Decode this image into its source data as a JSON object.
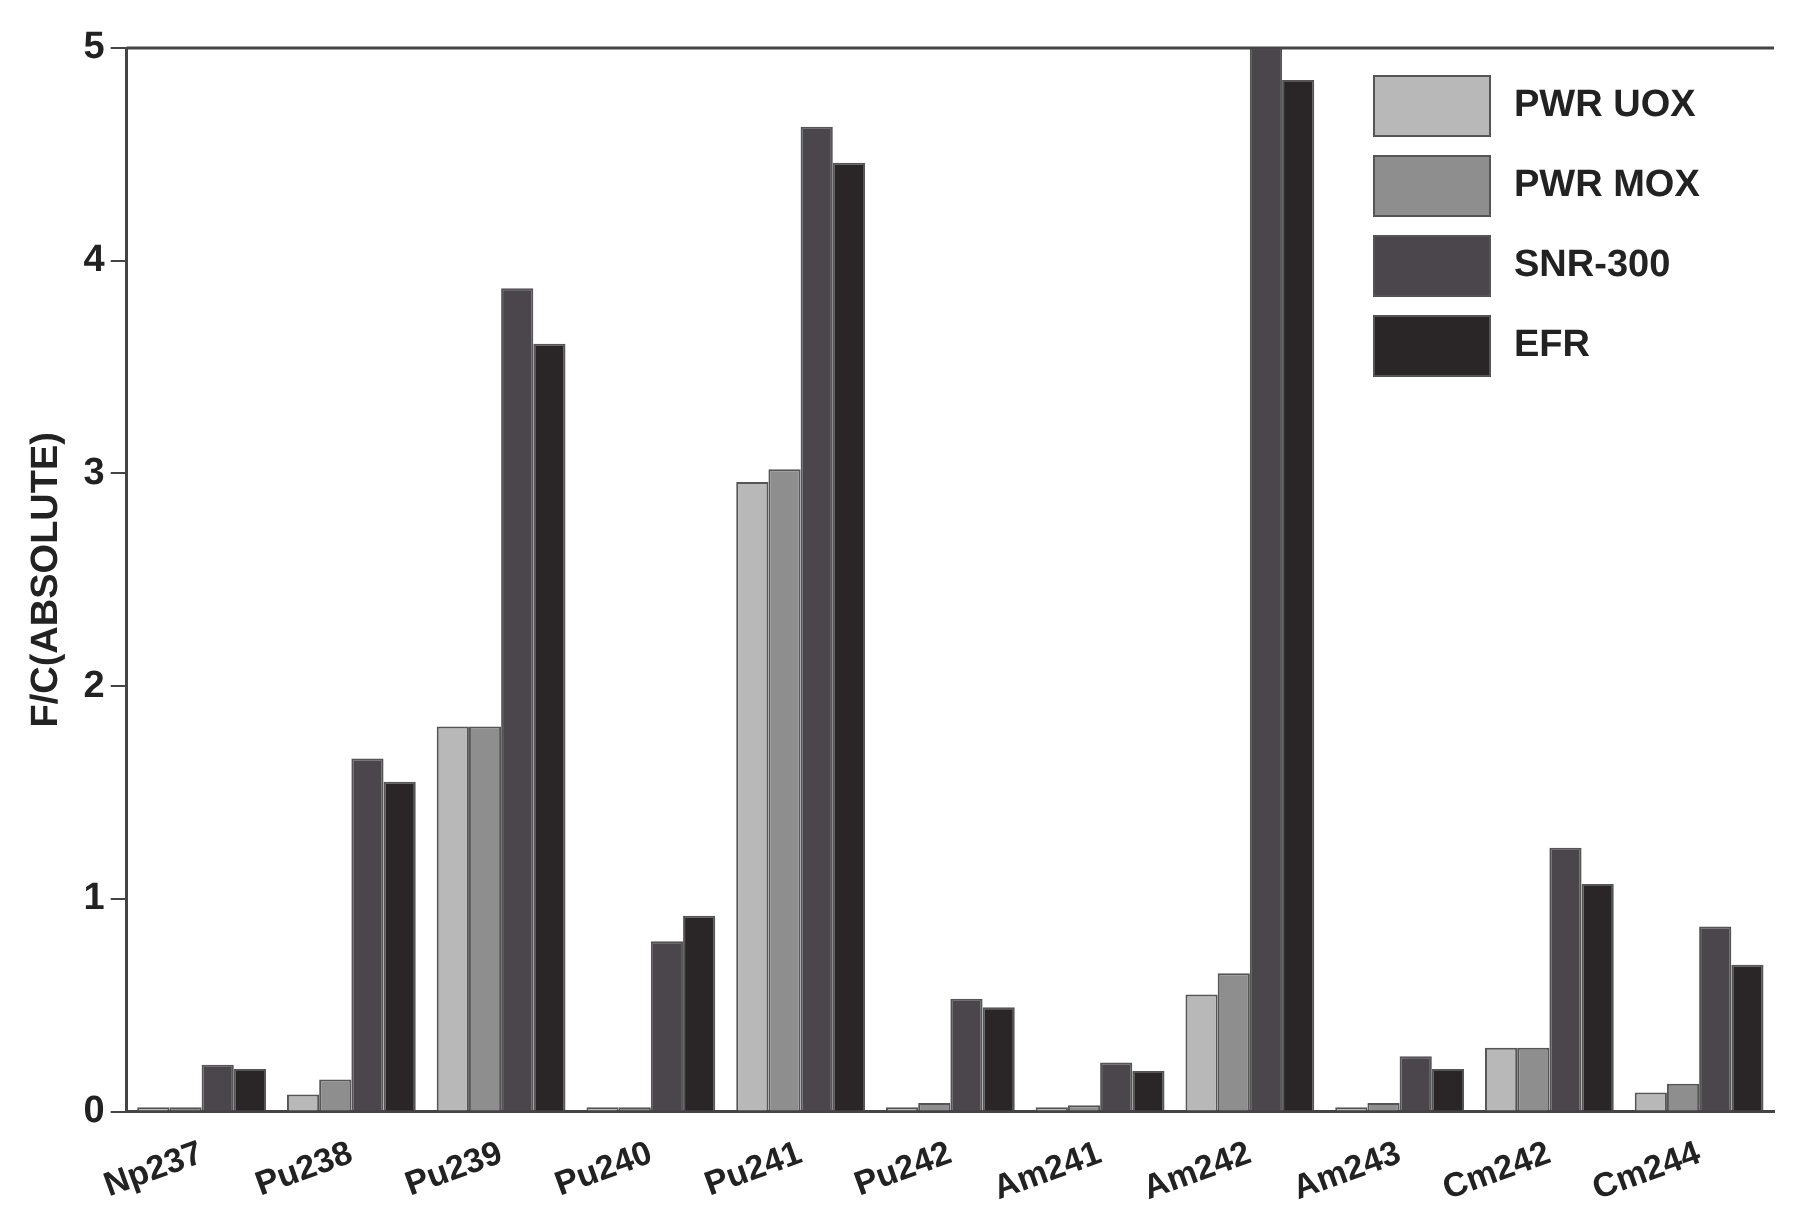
{
  "chart_data": {
    "type": "bar",
    "ylabel": "F/C(ABSOLUTE)",
    "categories": [
      "Np237",
      "Pu238",
      "Pu239",
      "Pu240",
      "Pu241",
      "Pu242",
      "Am241",
      "Am242",
      "Am243",
      "Cm242",
      "Cm244"
    ],
    "series": [
      {
        "name": "PWR UOX",
        "color": "#b8b8b8",
        "values": [
          0.02,
          0.08,
          1.81,
          0.02,
          2.96,
          0.02,
          0.02,
          0.55,
          0.02,
          0.3,
          0.09
        ]
      },
      {
        "name": "PWR MOX",
        "color": "#8e8e8e",
        "values": [
          0.02,
          0.15,
          1.81,
          0.02,
          3.02,
          0.04,
          0.03,
          0.65,
          0.04,
          0.3,
          0.13
        ]
      },
      {
        "name": "SNR-300",
        "color": "#4a464c",
        "values": [
          0.22,
          1.66,
          3.87,
          0.8,
          4.63,
          0.53,
          0.23,
          5.0,
          0.26,
          1.24,
          0.87
        ]
      },
      {
        "name": "EFR",
        "color": "#2a2628",
        "values": [
          0.2,
          1.55,
          3.61,
          0.92,
          4.46,
          0.49,
          0.19,
          4.85,
          0.2,
          1.07,
          0.69
        ]
      }
    ],
    "ylim": [
      0,
      5
    ],
    "yticks": [
      0,
      1,
      2,
      3,
      4,
      5
    ],
    "grid": false,
    "legend": "top right"
  }
}
